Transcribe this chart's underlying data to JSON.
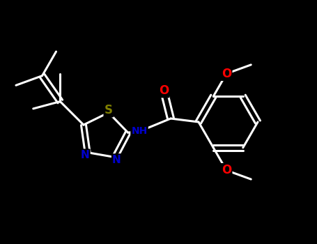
{
  "background_color": "#000000",
  "bond_color": "#ffffff",
  "S_color": "#808000",
  "N_color": "#0000cd",
  "O_color": "#ff0000",
  "C_color": "#ffffff",
  "bond_width": 2.2,
  "font_size": 11,
  "fig_width": 4.55,
  "fig_height": 3.5,
  "dpi": 100,
  "xlim": [
    0,
    9
  ],
  "ylim": [
    0,
    7
  ]
}
